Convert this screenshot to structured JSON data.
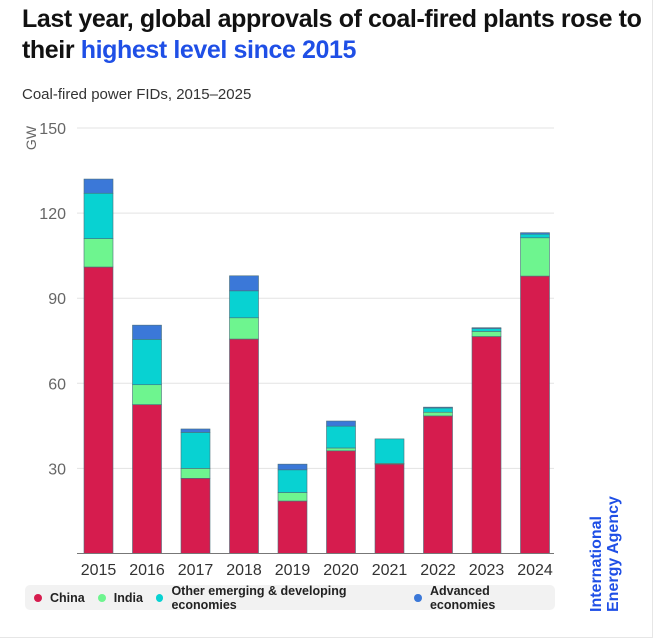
{
  "header": {
    "title_part1": "Last year, global approvals of coal-fired plants rose to their ",
    "title_highlight": "highest level since 2015",
    "subtitle": "Coal-fired power FIDs, 2015–2025"
  },
  "brand": {
    "line1": "International",
    "line2": "Energy Agency",
    "color": "#1f4fe6"
  },
  "legend": [
    {
      "name": "China",
      "color": "#d61c4e"
    },
    {
      "name": "India",
      "color": "#6ef58f"
    },
    {
      "name": "Other emerging & developing economies",
      "color": "#08d2d2"
    },
    {
      "name": "Advanced economies",
      "color": "#3b78d8"
    }
  ],
  "chart_data": {
    "type": "bar",
    "stacked": true,
    "title": "Coal-fired power FIDs, 2015–2025",
    "xlabel": "",
    "ylabel": "GW",
    "ylim": [
      0,
      150
    ],
    "yticks": [
      30,
      60,
      90,
      120,
      150
    ],
    "grid": true,
    "legend_position": "bottom",
    "categories": [
      "2015",
      "2016",
      "2017",
      "2018",
      "2019",
      "2020",
      "2021",
      "2022",
      "2023",
      "2024"
    ],
    "series": [
      {
        "name": "China",
        "color": "#d61c4e",
        "values": [
          101,
          52.5,
          26.5,
          75.6,
          18.5,
          36.2,
          31.5,
          48.5,
          76.5,
          97.8
        ]
      },
      {
        "name": "India",
        "color": "#6ef58f",
        "values": [
          10,
          7,
          3.5,
          7.5,
          3,
          1,
          0.3,
          1.3,
          1.8,
          13.5
        ]
      },
      {
        "name": "Other emerging & developing economies",
        "color": "#08d2d2",
        "values": [
          16,
          16,
          12.7,
          9.5,
          8,
          7.7,
          8.6,
          1.5,
          1,
          1.3
        ]
      },
      {
        "name": "Advanced economies",
        "color": "#3b78d8",
        "values": [
          5,
          5,
          1.2,
          5.3,
          2,
          1.8,
          0,
          0.3,
          0.3,
          0.5
        ]
      }
    ]
  }
}
